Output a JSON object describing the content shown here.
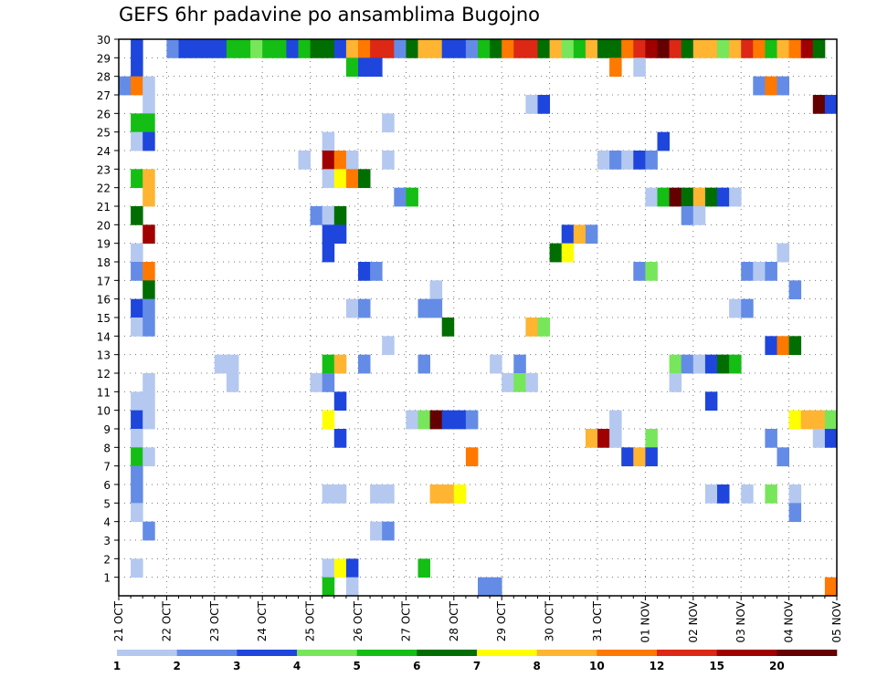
{
  "chart_data": {
    "type": "heatmap",
    "title": "GEFS 6hr padavine po ansamblima Bugojno",
    "xlabel": "",
    "ylabel": "",
    "y_tick_labels": [
      "1",
      "2",
      "3",
      "4",
      "5",
      "6",
      "7",
      "8",
      "9",
      "10",
      "11",
      "12",
      "13",
      "14",
      "15",
      "16",
      "17",
      "18",
      "19",
      "20",
      "21",
      "22",
      "23",
      "24",
      "25",
      "26",
      "27",
      "28",
      "29",
      "30"
    ],
    "x_tick_labels": [
      "21 OCT",
      "22 OCT",
      "23 OCT",
      "24 OCT",
      "25 OCT",
      "26 OCT",
      "27 OCT",
      "28 OCT",
      "29 OCT",
      "30 OCT",
      "31 OCT",
      "01 NOV",
      "02 NOV",
      "03 NOV",
      "04 NOV",
      "05 NOV"
    ],
    "x_range_steps": [
      0,
      60
    ],
    "y_range": [
      0,
      30
    ],
    "grid": true,
    "colorbar": {
      "labels": [
        "1",
        "2",
        "3",
        "4",
        "5",
        "6",
        "7",
        "8",
        "10",
        "12",
        "15",
        "20"
      ],
      "colors": [
        "#b4c8f0",
        "#648ce6",
        "#1e46dc",
        "#78e65a",
        "#14be14",
        "#006e00",
        "#ffff00",
        "#ffb432",
        "#ff7800",
        "#dc2814",
        "#a00000",
        "#640000"
      ]
    },
    "cells": [
      [
        2,
        30,
        3
      ],
      [
        5,
        30,
        2
      ],
      [
        6,
        30,
        3
      ],
      [
        7,
        30,
        3
      ],
      [
        8,
        30,
        3
      ],
      [
        9,
        30,
        3
      ],
      [
        10,
        30,
        5
      ],
      [
        11,
        30,
        5
      ],
      [
        12,
        30,
        4
      ],
      [
        13,
        30,
        5
      ],
      [
        14,
        30,
        5
      ],
      [
        15,
        30,
        3
      ],
      [
        16,
        30,
        5
      ],
      [
        17,
        30,
        6
      ],
      [
        18,
        30,
        6
      ],
      [
        19,
        30,
        3
      ],
      [
        20,
        30,
        8
      ],
      [
        21,
        30,
        9
      ],
      [
        22,
        30,
        10
      ],
      [
        23,
        30,
        10
      ],
      [
        24,
        30,
        2
      ],
      [
        25,
        30,
        6
      ],
      [
        26,
        30,
        8
      ],
      [
        27,
        30,
        8
      ],
      [
        28,
        30,
        3
      ],
      [
        29,
        30,
        3
      ],
      [
        30,
        30,
        2
      ],
      [
        31,
        30,
        5
      ],
      [
        32,
        30,
        6
      ],
      [
        33,
        30,
        9
      ],
      [
        34,
        30,
        10
      ],
      [
        35,
        30,
        10
      ],
      [
        36,
        30,
        6
      ],
      [
        37,
        30,
        8
      ],
      [
        38,
        30,
        4
      ],
      [
        39,
        30,
        5
      ],
      [
        40,
        30,
        8
      ],
      [
        41,
        30,
        6
      ],
      [
        42,
        30,
        6
      ],
      [
        43,
        30,
        9
      ],
      [
        44,
        30,
        10
      ],
      [
        45,
        30,
        11
      ],
      [
        46,
        30,
        12
      ],
      [
        47,
        30,
        10
      ],
      [
        48,
        30,
        6
      ],
      [
        49,
        30,
        8
      ],
      [
        50,
        30,
        8
      ],
      [
        51,
        30,
        4
      ],
      [
        52,
        30,
        8
      ],
      [
        53,
        30,
        10
      ],
      [
        54,
        30,
        9
      ],
      [
        55,
        30,
        5
      ],
      [
        56,
        30,
        8
      ],
      [
        57,
        30,
        9
      ],
      [
        58,
        30,
        11
      ],
      [
        59,
        30,
        6
      ],
      [
        2,
        29,
        3
      ],
      [
        20,
        29,
        5
      ],
      [
        21,
        29,
        3
      ],
      [
        22,
        29,
        3
      ],
      [
        42,
        29,
        9
      ],
      [
        44,
        29,
        1
      ],
      [
        1,
        28,
        2
      ],
      [
        2,
        28,
        9
      ],
      [
        3,
        28,
        1
      ],
      [
        54,
        28,
        2
      ],
      [
        55,
        28,
        9
      ],
      [
        56,
        28,
        2
      ],
      [
        3,
        27,
        1
      ],
      [
        35,
        27,
        1
      ],
      [
        36,
        27,
        3
      ],
      [
        59,
        27,
        12
      ],
      [
        60,
        27,
        3
      ],
      [
        2,
        26,
        5
      ],
      [
        3,
        26,
        5
      ],
      [
        23,
        26,
        1
      ],
      [
        2,
        25,
        1
      ],
      [
        3,
        25,
        3
      ],
      [
        18,
        25,
        1
      ],
      [
        46,
        25,
        3
      ],
      [
        16,
        24,
        1
      ],
      [
        18,
        24,
        11
      ],
      [
        19,
        24,
        9
      ],
      [
        20,
        24,
        1
      ],
      [
        23,
        24,
        1
      ],
      [
        41,
        24,
        1
      ],
      [
        42,
        24,
        2
      ],
      [
        43,
        24,
        1
      ],
      [
        44,
        24,
        3
      ],
      [
        45,
        24,
        2
      ],
      [
        2,
        23,
        5
      ],
      [
        3,
        23,
        8
      ],
      [
        18,
        23,
        1
      ],
      [
        19,
        23,
        7
      ],
      [
        20,
        23,
        9
      ],
      [
        21,
        23,
        6
      ],
      [
        3,
        22,
        8
      ],
      [
        24,
        22,
        2
      ],
      [
        25,
        22,
        5
      ],
      [
        45,
        22,
        1
      ],
      [
        46,
        22,
        5
      ],
      [
        47,
        22,
        12
      ],
      [
        48,
        22,
        6
      ],
      [
        49,
        22,
        8
      ],
      [
        50,
        22,
        6
      ],
      [
        51,
        22,
        3
      ],
      [
        52,
        22,
        1
      ],
      [
        2,
        21,
        6
      ],
      [
        17,
        21,
        2
      ],
      [
        18,
        21,
        1
      ],
      [
        19,
        21,
        6
      ],
      [
        48,
        21,
        2
      ],
      [
        49,
        21,
        1
      ],
      [
        3,
        20,
        11
      ],
      [
        18,
        20,
        3
      ],
      [
        19,
        20,
        3
      ],
      [
        38,
        20,
        3
      ],
      [
        39,
        20,
        8
      ],
      [
        40,
        20,
        2
      ],
      [
        2,
        19,
        1
      ],
      [
        18,
        19,
        3
      ],
      [
        37,
        19,
        6
      ],
      [
        38,
        19,
        7
      ],
      [
        56,
        19,
        1
      ],
      [
        2,
        18,
        2
      ],
      [
        3,
        18,
        9
      ],
      [
        21,
        18,
        3
      ],
      [
        22,
        18,
        2
      ],
      [
        44,
        18,
        2
      ],
      [
        45,
        18,
        4
      ],
      [
        53,
        18,
        2
      ],
      [
        54,
        18,
        1
      ],
      [
        55,
        18,
        2
      ],
      [
        3,
        17,
        6
      ],
      [
        27,
        17,
        1
      ],
      [
        57,
        17,
        2
      ],
      [
        2,
        16,
        3
      ],
      [
        3,
        16,
        2
      ],
      [
        20,
        16,
        1
      ],
      [
        21,
        16,
        2
      ],
      [
        26,
        16,
        2
      ],
      [
        27,
        16,
        2
      ],
      [
        52,
        16,
        1
      ],
      [
        53,
        16,
        2
      ],
      [
        2,
        15,
        1
      ],
      [
        3,
        15,
        2
      ],
      [
        28,
        15,
        6
      ],
      [
        35,
        15,
        8
      ],
      [
        36,
        15,
        4
      ],
      [
        23,
        14,
        1
      ],
      [
        55,
        14,
        3
      ],
      [
        56,
        14,
        9
      ],
      [
        57,
        14,
        6
      ],
      [
        9,
        13,
        1
      ],
      [
        10,
        13,
        1
      ],
      [
        18,
        13,
        5
      ],
      [
        19,
        13,
        8
      ],
      [
        21,
        13,
        2
      ],
      [
        26,
        13,
        2
      ],
      [
        32,
        13,
        1
      ],
      [
        34,
        13,
        2
      ],
      [
        47,
        13,
        4
      ],
      [
        48,
        13,
        2
      ],
      [
        49,
        13,
        1
      ],
      [
        50,
        13,
        3
      ],
      [
        51,
        13,
        6
      ],
      [
        52,
        13,
        5
      ],
      [
        3,
        12,
        1
      ],
      [
        10,
        12,
        1
      ],
      [
        17,
        12,
        1
      ],
      [
        18,
        12,
        2
      ],
      [
        33,
        12,
        1
      ],
      [
        34,
        12,
        4
      ],
      [
        35,
        12,
        1
      ],
      [
        47,
        12,
        1
      ],
      [
        2,
        11,
        1
      ],
      [
        3,
        11,
        1
      ],
      [
        19,
        11,
        3
      ],
      [
        50,
        11,
        3
      ],
      [
        2,
        10,
        3
      ],
      [
        3,
        10,
        1
      ],
      [
        18,
        10,
        7
      ],
      [
        25,
        10,
        1
      ],
      [
        26,
        10,
        4
      ],
      [
        27,
        10,
        12
      ],
      [
        28,
        10,
        3
      ],
      [
        29,
        10,
        3
      ],
      [
        30,
        10,
        2
      ],
      [
        42,
        10,
        1
      ],
      [
        57,
        10,
        7
      ],
      [
        58,
        10,
        8
      ],
      [
        59,
        10,
        8
      ],
      [
        60,
        10,
        4
      ],
      [
        2,
        9,
        1
      ],
      [
        19,
        9,
        3
      ],
      [
        40,
        9,
        8
      ],
      [
        41,
        9,
        11
      ],
      [
        42,
        9,
        1
      ],
      [
        45,
        9,
        4
      ],
      [
        55,
        9,
        2
      ],
      [
        59,
        9,
        1
      ],
      [
        60,
        9,
        3
      ],
      [
        2,
        8,
        5
      ],
      [
        3,
        8,
        1
      ],
      [
        30,
        8,
        9
      ],
      [
        43,
        8,
        3
      ],
      [
        44,
        8,
        8
      ],
      [
        45,
        8,
        3
      ],
      [
        56,
        8,
        2
      ],
      [
        2,
        7,
        2
      ],
      [
        2,
        6,
        2
      ],
      [
        18,
        6,
        1
      ],
      [
        19,
        6,
        1
      ],
      [
        22,
        6,
        1
      ],
      [
        23,
        6,
        1
      ],
      [
        27,
        6,
        8
      ],
      [
        28,
        6,
        8
      ],
      [
        29,
        6,
        7
      ],
      [
        50,
        6,
        1
      ],
      [
        51,
        6,
        3
      ],
      [
        53,
        6,
        1
      ],
      [
        55,
        6,
        4
      ],
      [
        57,
        6,
        1
      ],
      [
        2,
        5,
        1
      ],
      [
        57,
        5,
        2
      ],
      [
        3,
        4,
        2
      ],
      [
        22,
        4,
        1
      ],
      [
        23,
        4,
        2
      ],
      [
        2,
        2,
        1
      ],
      [
        18,
        2,
        1
      ],
      [
        19,
        2,
        7
      ],
      [
        20,
        2,
        3
      ],
      [
        26,
        2,
        5
      ],
      [
        18,
        1,
        5
      ],
      [
        20,
        1,
        1
      ],
      [
        31,
        1,
        2
      ],
      [
        32,
        1,
        2
      ],
      [
        60,
        1,
        9
      ]
    ]
  }
}
